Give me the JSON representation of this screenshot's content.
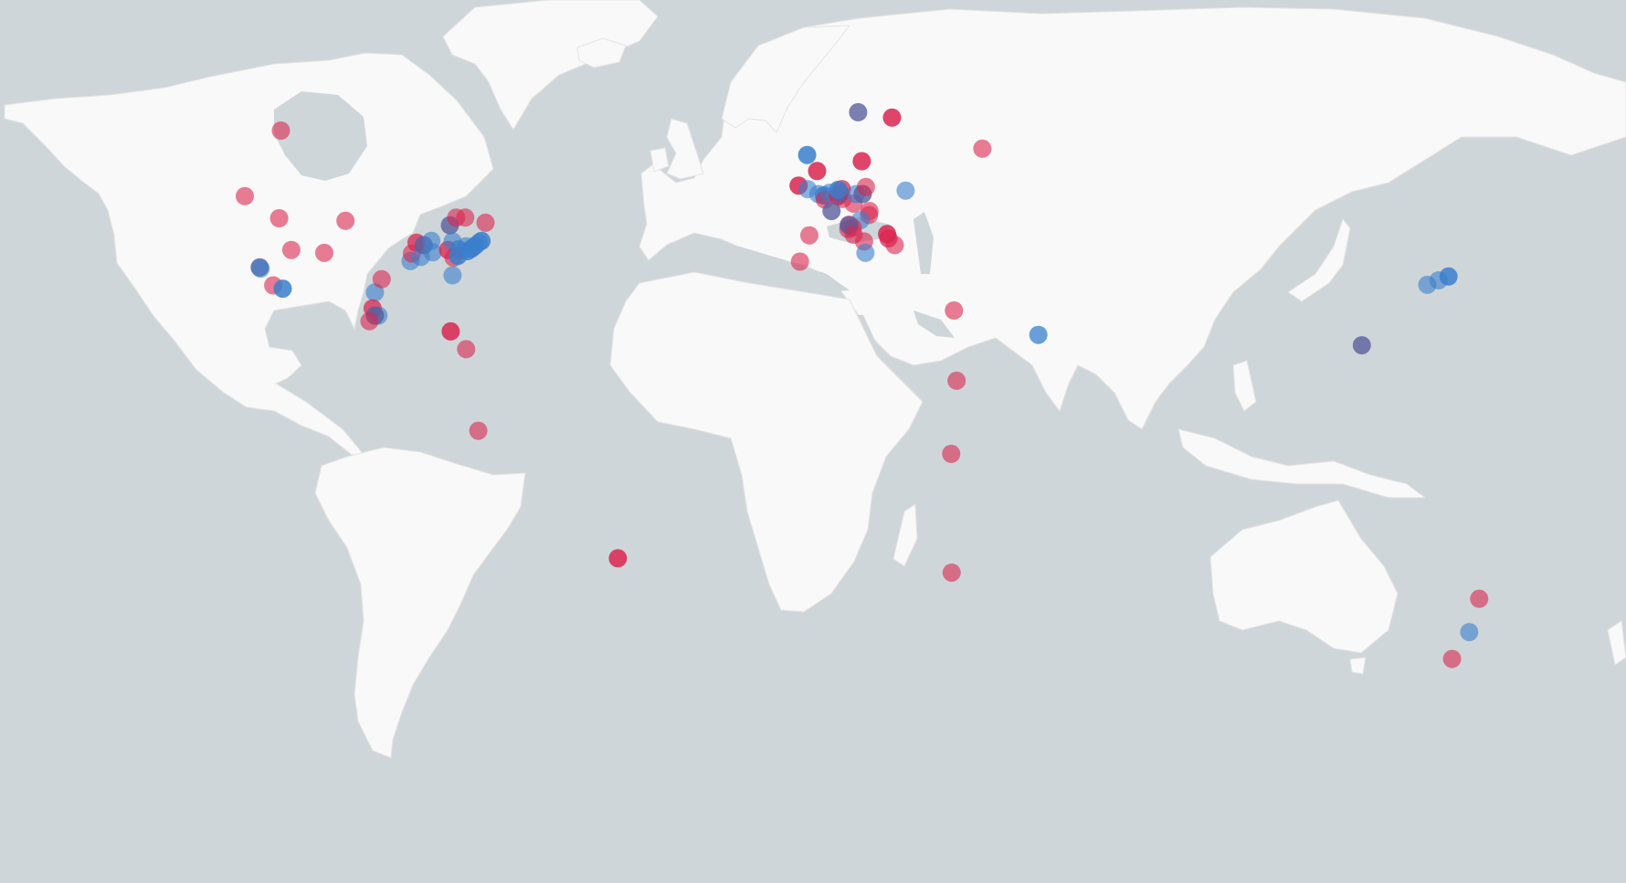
{
  "map": {
    "type": "world-map-with-location-markers",
    "projection": "web-mercator",
    "colors": {
      "ocean": "#cfd6d9",
      "land": "#f9f9f9",
      "borders": "#e6e2e2",
      "marker_red": "#d9264f",
      "marker_blue": "#3a7fcc",
      "marker_purple": "#5a5f9e"
    },
    "markers": [
      {
        "lon": -117.8,
        "lat": 57.8,
        "color": "red",
        "opacity": 0.6
      },
      {
        "lon": -125.8,
        "lat": 49.2,
        "color": "red",
        "opacity": 0.6
      },
      {
        "lon": -118.2,
        "lat": 45.9,
        "color": "red",
        "opacity": 0.6
      },
      {
        "lon": -103.5,
        "lat": 45.5,
        "color": "red",
        "opacity": 0.6
      },
      {
        "lon": -115.5,
        "lat": 40.8,
        "color": "red",
        "opacity": 0.6
      },
      {
        "lon": -108.2,
        "lat": 40.3,
        "color": "red",
        "opacity": 0.6
      },
      {
        "lon": -122.5,
        "lat": 37.8,
        "color": "purple",
        "opacity": 0.8
      },
      {
        "lon": -122.3,
        "lat": 37.6,
        "color": "blue",
        "opacity": 0.6
      },
      {
        "lon": -119.5,
        "lat": 34.6,
        "color": "red",
        "opacity": 0.6
      },
      {
        "lon": -117.4,
        "lat": 34.0,
        "color": "blue",
        "opacity": 0.85
      },
      {
        "lon": -97.0,
        "lat": 33.3,
        "color": "blue",
        "opacity": 0.6
      },
      {
        "lon": -95.5,
        "lat": 35.7,
        "color": "red",
        "opacity": 0.6
      },
      {
        "lon": -97.5,
        "lat": 30.3,
        "color": "red",
        "opacity": 0.75
      },
      {
        "lon": -96.2,
        "lat": 28.9,
        "color": "blue",
        "opacity": 0.6
      },
      {
        "lon": -97.0,
        "lat": 28.9,
        "color": "purple",
        "opacity": 0.8
      },
      {
        "lon": -98.2,
        "lat": 27.8,
        "color": "red",
        "opacity": 0.6
      },
      {
        "lon": -89.1,
        "lat": 38.9,
        "color": "blue",
        "opacity": 0.6
      },
      {
        "lon": -87.8,
        "lat": 42.0,
        "color": "red",
        "opacity": 0.75
      },
      {
        "lon": -88.8,
        "lat": 40.2,
        "color": "red",
        "opacity": 0.6
      },
      {
        "lon": -86.8,
        "lat": 39.6,
        "color": "blue",
        "opacity": 0.6
      },
      {
        "lon": -86.2,
        "lat": 41.6,
        "color": "purple",
        "opacity": 0.8
      },
      {
        "lon": -84.5,
        "lat": 42.3,
        "color": "blue",
        "opacity": 0.6
      },
      {
        "lon": -84.2,
        "lat": 40.4,
        "color": "blue",
        "opacity": 0.6
      },
      {
        "lon": -80.4,
        "lat": 44.8,
        "color": "purple",
        "opacity": 0.8
      },
      {
        "lon": -79.0,
        "lat": 46.0,
        "color": "red",
        "opacity": 0.6
      },
      {
        "lon": -77.0,
        "lat": 46.0,
        "color": "red",
        "opacity": 0.6
      },
      {
        "lon": -72.5,
        "lat": 45.2,
        "color": "red",
        "opacity": 0.6
      },
      {
        "lon": -80.8,
        "lat": 40.8,
        "color": "red",
        "opacity": 0.75
      },
      {
        "lon": -79.8,
        "lat": 42.2,
        "color": "blue",
        "opacity": 0.6
      },
      {
        "lon": -78.5,
        "lat": 40.9,
        "color": "blue",
        "opacity": 0.75
      },
      {
        "lon": -76.8,
        "lat": 41.4,
        "color": "blue",
        "opacity": 0.6
      },
      {
        "lon": -76.5,
        "lat": 40.6,
        "color": "blue",
        "opacity": 0.85
      },
      {
        "lon": -75.6,
        "lat": 41.0,
        "color": "blue",
        "opacity": 0.85
      },
      {
        "lon": -74.8,
        "lat": 41.5,
        "color": "blue",
        "opacity": 0.85
      },
      {
        "lon": -73.4,
        "lat": 42.3,
        "color": "blue",
        "opacity": 0.85
      },
      {
        "lon": -74.0,
        "lat": 42.0,
        "color": "blue",
        "opacity": 0.6
      },
      {
        "lon": -79.6,
        "lat": 39.5,
        "color": "red",
        "opacity": 0.6
      },
      {
        "lon": -78.6,
        "lat": 39.8,
        "color": "blue",
        "opacity": 0.85
      },
      {
        "lon": -79.8,
        "lat": 36.4,
        "color": "blue",
        "opacity": 0.6
      },
      {
        "lon": -80.2,
        "lat": 25.8,
        "color": "red",
        "opacity": 0.85
      },
      {
        "lon": -76.8,
        "lat": 22.2,
        "color": "red",
        "opacity": 0.6
      },
      {
        "lon": -74.1,
        "lat": 4.7,
        "color": "red",
        "opacity": 0.6
      },
      {
        "lon": -43.2,
        "lat": -22.9,
        "color": "red",
        "opacity": 0.85
      },
      {
        "lon": -1.3,
        "lat": 54.8,
        "color": "blue",
        "opacity": 0.85
      },
      {
        "lon": 0.9,
        "lat": 52.7,
        "color": "red",
        "opacity": 0.85
      },
      {
        "lon": -3.2,
        "lat": 50.7,
        "color": "red",
        "opacity": 0.85
      },
      {
        "lon": -1.2,
        "lat": 50.2,
        "color": "blue",
        "opacity": 0.6
      },
      {
        "lon": 1.2,
        "lat": 49.5,
        "color": "blue",
        "opacity": 0.6
      },
      {
        "lon": 2.4,
        "lat": 49.3,
        "color": "blue",
        "opacity": 0.85
      },
      {
        "lon": 2.6,
        "lat": 48.7,
        "color": "red",
        "opacity": 0.6
      },
      {
        "lon": 3.7,
        "lat": 49.7,
        "color": "blue",
        "opacity": 0.6
      },
      {
        "lon": 5.6,
        "lat": 49.2,
        "color": "red",
        "opacity": 0.85
      },
      {
        "lon": 6.6,
        "lat": 48.8,
        "color": "red",
        "opacity": 0.6
      },
      {
        "lon": 6.0,
        "lat": 49.6,
        "color": "purple",
        "opacity": 0.85
      },
      {
        "lon": 6.4,
        "lat": 50.2,
        "color": "red",
        "opacity": 0.75
      },
      {
        "lon": 5.6,
        "lat": 50.1,
        "color": "blue",
        "opacity": 0.85
      },
      {
        "lon": 4.1,
        "lat": 47.0,
        "color": "purple",
        "opacity": 0.8
      },
      {
        "lon": 9.0,
        "lat": 48.1,
        "color": "red",
        "opacity": 0.6
      },
      {
        "lon": 9.5,
        "lat": 49.5,
        "color": "blue",
        "opacity": 0.6
      },
      {
        "lon": 11.0,
        "lat": 49.5,
        "color": "purple",
        "opacity": 0.8
      },
      {
        "lon": 11.7,
        "lat": 50.5,
        "color": "red",
        "opacity": 0.6
      },
      {
        "lon": 10.8,
        "lat": 54.0,
        "color": "red",
        "opacity": 0.85
      },
      {
        "lon": 10.0,
        "lat": 59.9,
        "color": "purple",
        "opacity": 0.8
      },
      {
        "lon": 17.5,
        "lat": 59.3,
        "color": "red",
        "opacity": 0.85
      },
      {
        "lon": 37.5,
        "lat": 55.6,
        "color": "red",
        "opacity": 0.6
      },
      {
        "lon": 20.5,
        "lat": 50.0,
        "color": "blue",
        "opacity": 0.6
      },
      {
        "lon": 12.5,
        "lat": 47.0,
        "color": "red",
        "opacity": 0.6
      },
      {
        "lon": 12.4,
        "lat": 46.4,
        "color": "red",
        "opacity": 0.6
      },
      {
        "lon": 10.5,
        "lat": 45.6,
        "color": "blue",
        "opacity": 0.6
      },
      {
        "lon": 8.0,
        "lat": 44.9,
        "color": "red",
        "opacity": 0.6
      },
      {
        "lon": 8.8,
        "lat": 44.4,
        "color": "red",
        "opacity": 0.6
      },
      {
        "lon": 7.8,
        "lat": 44.2,
        "color": "red",
        "opacity": 0.6
      },
      {
        "lon": 7.9,
        "lat": 44.8,
        "color": "purple",
        "opacity": 0.8
      },
      {
        "lon": 9.0,
        "lat": 43.3,
        "color": "red",
        "opacity": 0.6
      },
      {
        "lon": 11.3,
        "lat": 42.2,
        "color": "red",
        "opacity": 0.6
      },
      {
        "lon": 11.6,
        "lat": 40.3,
        "color": "blue",
        "opacity": 0.6
      },
      {
        "lon": 16.4,
        "lat": 43.4,
        "color": "red",
        "opacity": 0.85
      },
      {
        "lon": 16.7,
        "lat": 42.7,
        "color": "red",
        "opacity": 0.75
      },
      {
        "lon": 18.1,
        "lat": 41.6,
        "color": "red",
        "opacity": 0.6
      },
      {
        "lon": -0.8,
        "lat": 43.2,
        "color": "red",
        "opacity": 0.6
      },
      {
        "lon": -2.9,
        "lat": 38.8,
        "color": "red",
        "opacity": 0.6
      },
      {
        "lon": 31.2,
        "lat": 29.9,
        "color": "red",
        "opacity": 0.6
      },
      {
        "lon": 31.8,
        "lat": 15.6,
        "color": "red",
        "opacity": 0.6
      },
      {
        "lon": 30.6,
        "lat": -0.4,
        "color": "red",
        "opacity": 0.6
      },
      {
        "lon": 30.7,
        "lat": -25.8,
        "color": "red",
        "opacity": 0.6
      },
      {
        "lon": 49.9,
        "lat": 25.1,
        "color": "blue",
        "opacity": 0.75
      },
      {
        "lon": 121.5,
        "lat": 23.0,
        "color": "purple",
        "opacity": 0.8
      },
      {
        "lon": 136.0,
        "lat": 34.7,
        "color": "blue",
        "opacity": 0.6
      },
      {
        "lon": 138.5,
        "lat": 35.5,
        "color": "blue",
        "opacity": 0.6
      },
      {
        "lon": 140.7,
        "lat": 36.2,
        "color": "blue",
        "opacity": 0.85
      },
      {
        "lon": 147.5,
        "lat": -30.9,
        "color": "red",
        "opacity": 0.6
      },
      {
        "lon": 145.3,
        "lat": -37.0,
        "color": "blue",
        "opacity": 0.6
      },
      {
        "lon": 141.5,
        "lat": -41.6,
        "color": "red",
        "opacity": 0.6
      }
    ]
  }
}
